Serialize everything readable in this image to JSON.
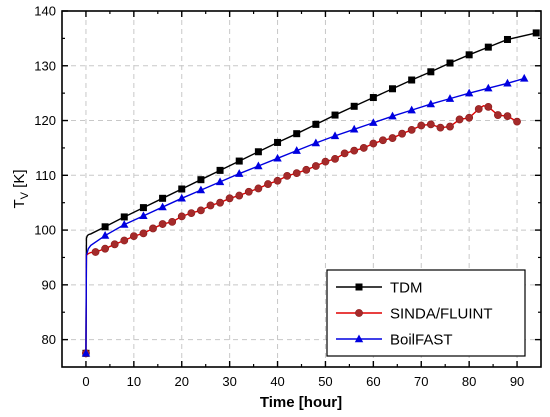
{
  "chart_data": {
    "type": "line",
    "xlabel": "Time [hour]",
    "ylabel": {
      "main": "T",
      "subscript": "V",
      "unit": " [K]"
    },
    "xlim": [
      -5,
      95
    ],
    "ylim": [
      75,
      140
    ],
    "x_ticks": [
      0,
      10,
      20,
      30,
      40,
      50,
      60,
      70,
      80,
      90
    ],
    "y_ticks": [
      80,
      90,
      100,
      110,
      120,
      130,
      140
    ],
    "grid": true,
    "legend_position": "bottom-right",
    "series": [
      {
        "name": "TDM",
        "color": "#000000",
        "marker": "square",
        "x": [
          0,
          0.1,
          0.3,
          0.6,
          1,
          4,
          8,
          12,
          16,
          20,
          24,
          28,
          32,
          36,
          40,
          44,
          48,
          52,
          56,
          60,
          64,
          68,
          72,
          76,
          80,
          84,
          88,
          94
        ],
        "y": [
          77.5,
          98.5,
          99.0,
          99.2,
          99.3,
          100.6,
          102.4,
          104.1,
          105.8,
          107.5,
          109.2,
          110.9,
          112.6,
          114.3,
          116.0,
          117.6,
          119.3,
          121.0,
          122.6,
          124.2,
          125.8,
          127.4,
          128.9,
          130.5,
          132.0,
          133.4,
          134.8,
          136.0
        ]
      },
      {
        "name": "SINDA/FLUINT",
        "color": "#e00000",
        "marker": "circle",
        "x": [
          0,
          0.1,
          0.5,
          1,
          2,
          4,
          6,
          8,
          10,
          12,
          14,
          16,
          18,
          20,
          22,
          24,
          26,
          28,
          30,
          32,
          34,
          36,
          38,
          40,
          42,
          44,
          46,
          48,
          50,
          52,
          54,
          56,
          58,
          60,
          62,
          64,
          66,
          68,
          70,
          72,
          74,
          76,
          78,
          80,
          82,
          83,
          84,
          86,
          88,
          90
        ],
        "y": [
          77.5,
          95.4,
          95.7,
          95.9,
          96.0,
          96.6,
          97.4,
          98.1,
          98.9,
          99.4,
          100.3,
          101.1,
          101.5,
          102.5,
          103.1,
          103.6,
          104.5,
          105.0,
          105.8,
          106.3,
          107.0,
          107.6,
          108.4,
          109.0,
          109.9,
          110.4,
          111.0,
          111.7,
          112.5,
          113.0,
          114.0,
          114.5,
          115.0,
          115.8,
          116.4,
          116.8,
          117.6,
          118.3,
          119.1,
          119.3,
          118.7,
          118.9,
          120.2,
          120.5,
          122.1,
          122.7,
          122.5,
          121.0,
          120.8,
          119.8
        ]
      },
      {
        "name": "BoilFAST",
        "color": "#0000e0",
        "marker": "triangle",
        "x": [
          0,
          0.1,
          0.5,
          1,
          4,
          8,
          12,
          16,
          20,
          24,
          28,
          32,
          36,
          40,
          44,
          48,
          52,
          56,
          60,
          64,
          68,
          72,
          76,
          80,
          84,
          88,
          90,
          91.5
        ],
        "y": [
          77.5,
          95.4,
          96.6,
          97.2,
          99.0,
          101.0,
          102.6,
          104.2,
          105.8,
          107.3,
          108.8,
          110.3,
          111.7,
          113.1,
          114.5,
          115.9,
          117.2,
          118.4,
          119.6,
          120.8,
          121.9,
          123.0,
          124.0,
          125.0,
          125.9,
          126.8,
          127.3,
          127.7
        ]
      }
    ]
  }
}
